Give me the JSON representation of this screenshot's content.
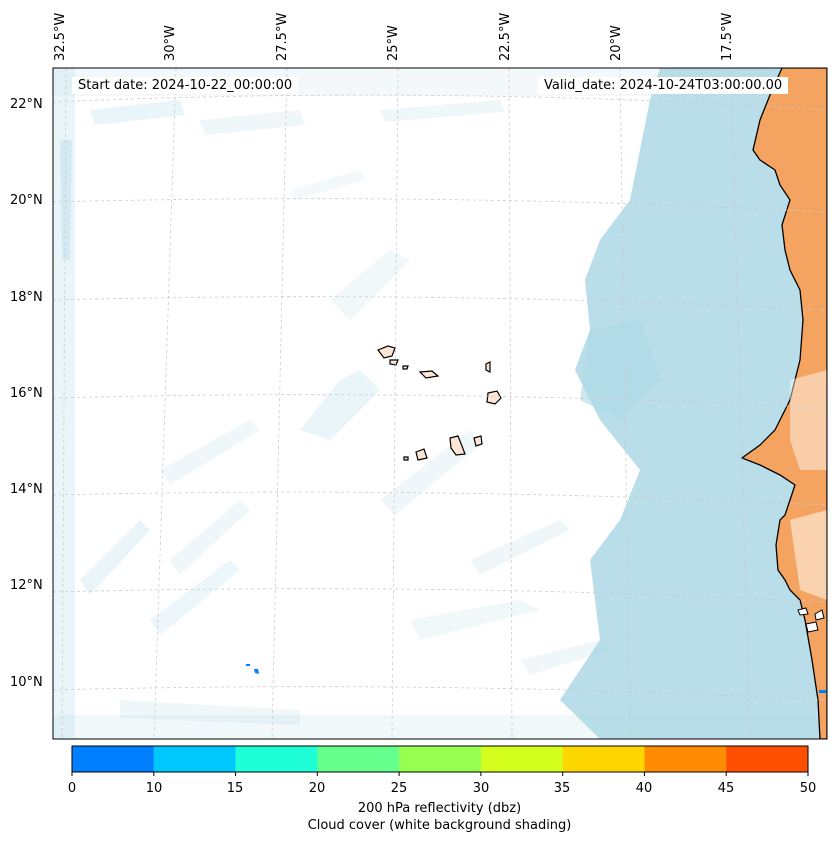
{
  "map": {
    "lon_labels": [
      "32.5°W",
      "30°W",
      "27.5°W",
      "25°W",
      "22.5°W",
      "20°W",
      "17.5°W"
    ],
    "lat_labels": [
      "22°N",
      "20°N",
      "18°N",
      "16°N",
      "14°N",
      "12°N",
      "10°N"
    ],
    "start_date": "Start date: 2024-10-22_00:00:00",
    "valid_date": "Valid_date: 2024-10-24T03:00:00.00",
    "land_color": "#f4a460",
    "cloud_color": "#add8e6",
    "ocean_color": "#ffffff",
    "coastline_color": "#000000",
    "gridlines": true
  },
  "colorbar": {
    "ticks": [
      "0",
      "10",
      "15",
      "20",
      "25",
      "30",
      "35",
      "40",
      "45",
      "50"
    ],
    "colors": [
      "#0080ff",
      "#00c8ff",
      "#1effd8",
      "#64ff8c",
      "#96ff50",
      "#d4ff1e",
      "#ffd700",
      "#ff8c00",
      "#ff5000"
    ],
    "label_line1": "200 hPa reflectivity (dbz)",
    "label_line2": "Cloud cover (white background shading)"
  }
}
